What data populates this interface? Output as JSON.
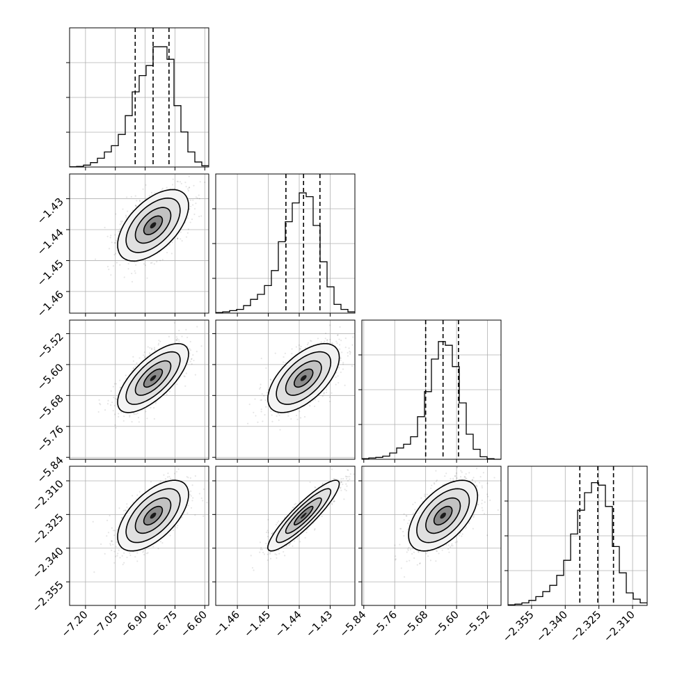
{
  "chart_data": {
    "type": "corner",
    "grid": true,
    "parameters": [
      {
        "range": [
          -7.28,
          -6.58
        ],
        "ticks": [
          -7.2,
          -7.05,
          -6.9,
          -6.75,
          -6.6
        ],
        "tick_labels": [
          "−7.20",
          "−7.05",
          "−6.90",
          "−6.75",
          "−6.60"
        ],
        "quantiles": [
          -6.95,
          -6.86,
          -6.78
        ],
        "hist_edges": [
          -7.28,
          -7.245,
          -7.21,
          -7.175,
          -7.14,
          -7.105,
          -7.07,
          -7.035,
          -7.0,
          -6.965,
          -6.93,
          -6.895,
          -6.86,
          -6.825,
          -6.79,
          -6.755,
          -6.72,
          -6.685,
          -6.65,
          -6.615,
          -6.58
        ],
        "hist_counts": [
          0.2,
          0.5,
          1.5,
          3.5,
          7,
          12,
          17,
          26,
          41,
          60,
          73,
          81,
          96,
          96,
          86,
          49,
          28,
          12,
          4,
          1
        ]
      },
      {
        "range": [
          -1.467,
          -1.422
        ],
        "ticks": [
          -1.46,
          -1.45,
          -1.44,
          -1.43
        ],
        "tick_labels": [
          "−1.46",
          "−1.45",
          "−1.44",
          "−1.43"
        ],
        "quantiles": [
          -1.4443,
          -1.4386,
          -1.4333
        ],
        "hist_edges": [
          -1.467,
          -1.46475,
          -1.4625,
          -1.46025,
          -1.458,
          -1.45575,
          -1.4535,
          -1.45125,
          -1.449,
          -1.44675,
          -1.4445,
          -1.44225,
          -1.44,
          -1.43775,
          -1.4355,
          -1.43325,
          -1.431,
          -1.42875,
          -1.4265,
          -1.42425,
          -1.422
        ],
        "hist_counts": [
          0.5,
          1,
          2,
          3,
          6,
          11,
          15,
          22,
          34,
          57,
          73,
          88,
          96,
          93,
          70,
          41,
          21,
          7,
          3,
          1
        ]
      },
      {
        "range": [
          -5.845,
          -5.485
        ],
        "ticks": [
          -5.84,
          -5.76,
          -5.68,
          -5.6,
          -5.52
        ],
        "tick_labels": [
          "−5.84",
          "−5.76",
          "−5.68",
          "−5.60",
          "−5.52"
        ],
        "quantiles": [
          -5.68,
          -5.635,
          -5.595
        ],
        "hist_edges": [
          -5.845,
          -5.827,
          -5.809,
          -5.791,
          -5.773,
          -5.755,
          -5.737,
          -5.719,
          -5.701,
          -5.683,
          -5.665,
          -5.647,
          -5.629,
          -5.611,
          -5.593,
          -5.575,
          -5.557,
          -5.539,
          -5.521,
          -5.503,
          -5.485
        ],
        "hist_counts": [
          0.5,
          1,
          1.5,
          2.5,
          5,
          9,
          12,
          18,
          34,
          54,
          80,
          94,
          91,
          74,
          45,
          20,
          8,
          2,
          0.5,
          0
        ]
      },
      {
        "range": [
          -2.3655,
          -2.3035
        ],
        "ticks": [
          -2.355,
          -2.34,
          -2.325,
          -2.31
        ],
        "tick_labels": [
          "−2.355",
          "−2.340",
          "−2.325",
          "−2.310"
        ],
        "quantiles": [
          -2.3335,
          -2.3255,
          -2.3185
        ],
        "hist_edges": [
          -2.3655,
          -2.3624,
          -2.3593,
          -2.3562,
          -2.3531,
          -2.35,
          -2.3469,
          -2.3438,
          -2.3407,
          -2.3376,
          -2.3345,
          -2.3314,
          -2.3283,
          -2.3252,
          -2.3221,
          -2.319,
          -2.3159,
          -2.3128,
          -2.3097,
          -2.3066,
          -2.3035
        ],
        "hist_counts": [
          0.5,
          1,
          2,
          4,
          7,
          11,
          16,
          24,
          36,
          57,
          76,
          90,
          98,
          96,
          79,
          47,
          26,
          10,
          5,
          2
        ]
      }
    ],
    "panels_2d": [
      {
        "x_param": 0,
        "y_param": 1,
        "correlation": 0.55
      },
      {
        "x_param": 0,
        "y_param": 2,
        "correlation": 0.7
      },
      {
        "x_param": 1,
        "y_param": 2,
        "correlation": 0.6
      },
      {
        "x_param": 0,
        "y_param": 3,
        "correlation": 0.6
      },
      {
        "x_param": 1,
        "y_param": 3,
        "correlation": 0.9
      },
      {
        "x_param": 2,
        "y_param": 3,
        "correlation": 0.55
      }
    ]
  }
}
